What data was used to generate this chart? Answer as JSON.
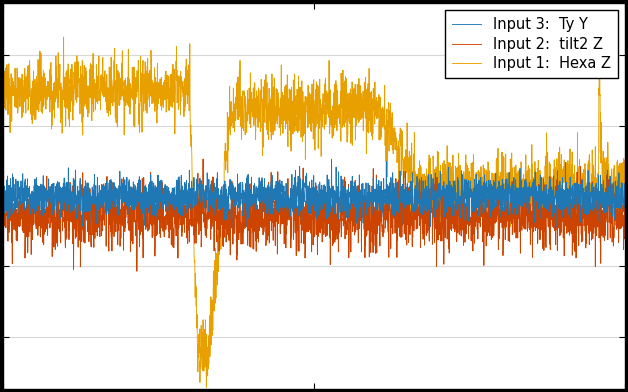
{
  "legend_labels": [
    "Input 1:  Hexa Z",
    "Input 2:  tilt2 Z",
    "Input 3:  Ty Y"
  ],
  "colors": [
    "#1f77b4",
    "#cc4400",
    "#e8a000"
  ],
  "n_points": 3000,
  "seed": 7,
  "background_color": "#ffffff",
  "grid_color": "#d8d8d8",
  "outer_bg": "#000000",
  "legend_fontsize": 10.5,
  "tick_fontsize": 10,
  "ylim": [
    -5.5,
    5.5
  ]
}
